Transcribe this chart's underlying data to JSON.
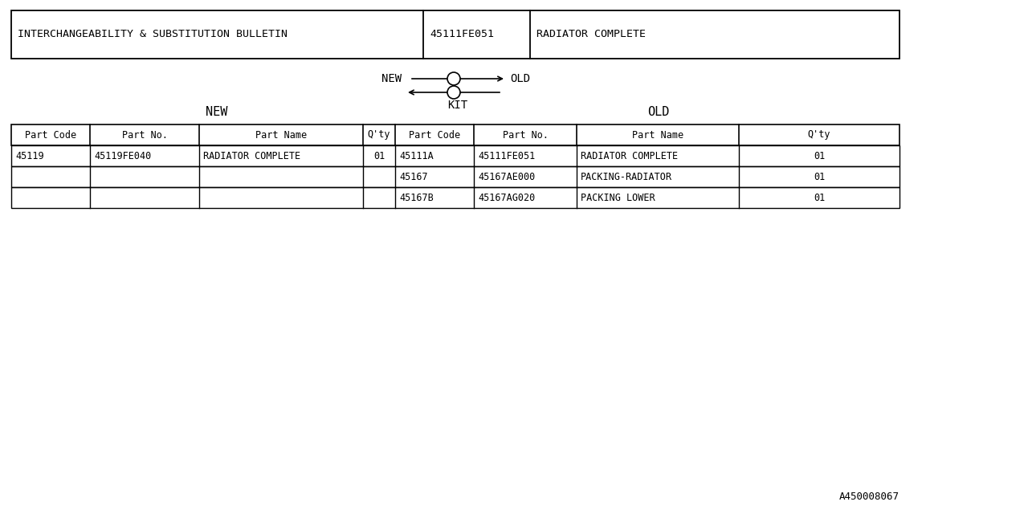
{
  "bg_color": "#ffffff",
  "border_color": "#000000",
  "title_row": {
    "col1": "INTERCHANGEABILITY & SUBSTITUTION BULLETIN",
    "col2": "45111FE051",
    "col3": "RADIATOR COMPLETE"
  },
  "table_headers": [
    "Part Code",
    "Part No.",
    "Part Name",
    "Q'ty",
    "Part Code",
    "Part No.",
    "Part Name",
    "Q'ty"
  ],
  "new_rows": [
    [
      "45119",
      "45119FE040",
      "RADIATOR COMPLETE",
      "01"
    ]
  ],
  "old_rows": [
    [
      "45111A",
      "45111FE051",
      "RADIATOR COMPLETE",
      "01"
    ],
    [
      "45167",
      "45167AE000",
      "PACKING-RADIATOR",
      "01"
    ],
    [
      "45167B",
      "45167AG020",
      "PACKING LOWER",
      "01"
    ]
  ],
  "footer": "A450008067",
  "fig_width": 12.8,
  "fig_height": 6.4,
  "dpi": 100
}
